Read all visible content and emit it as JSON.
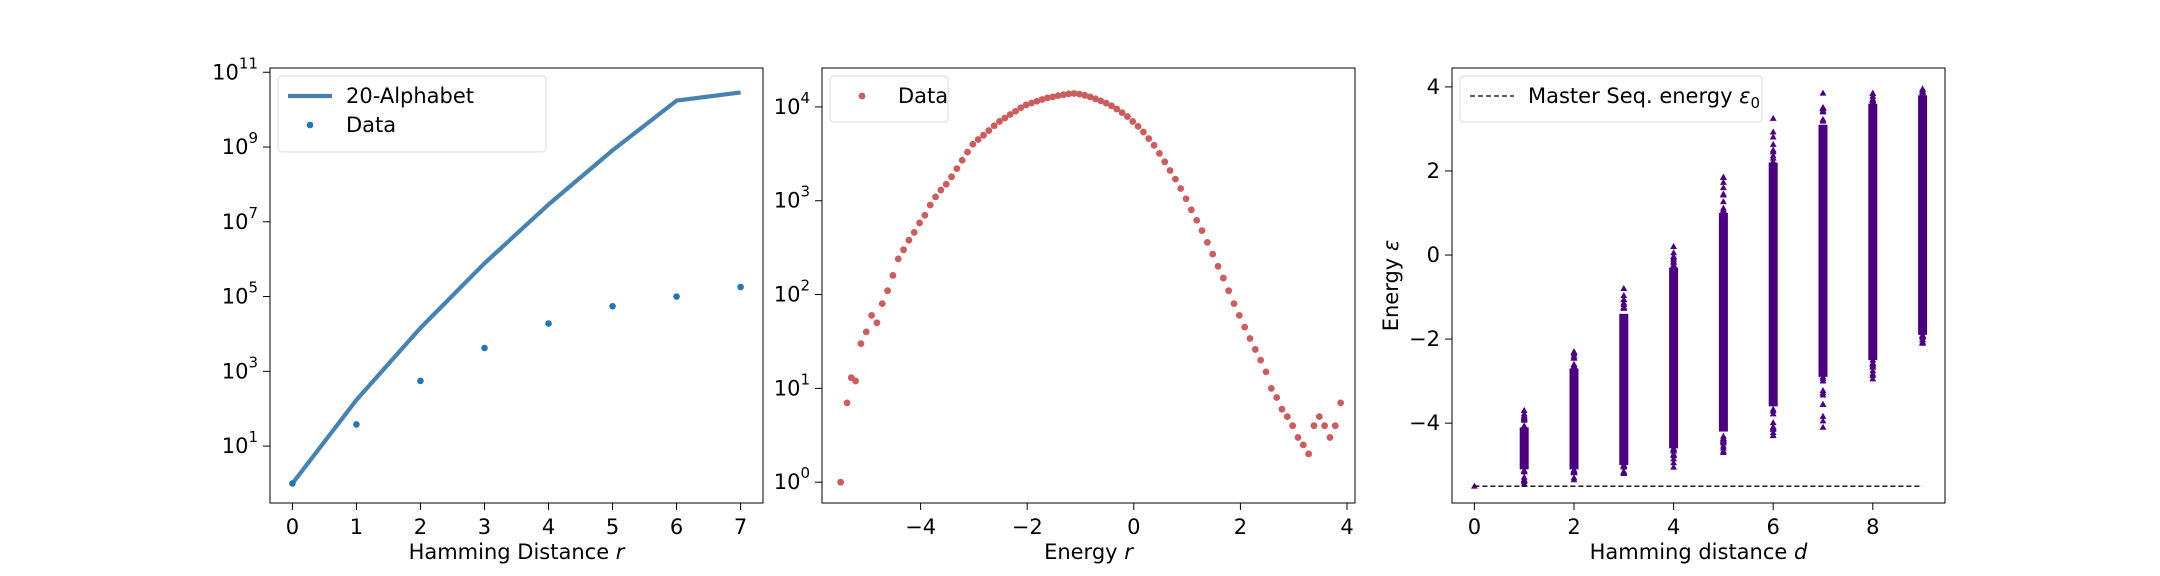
{
  "chart_data": [
    {
      "type": "line",
      "xlabel": "Hamming Distance",
      "xlabel_var": "r",
      "y_scale": "log",
      "xlim": [
        -0.35,
        7.35
      ],
      "ylim": [
        0.3,
        130000000000.0
      ],
      "xticks": [
        0,
        1,
        2,
        3,
        4,
        5,
        6,
        7
      ],
      "yticks": [
        {
          "value": 10,
          "base": "10",
          "exp": "1"
        },
        {
          "value": 1000,
          "base": "10",
          "exp": "3"
        },
        {
          "value": 100000,
          "base": "10",
          "exp": "5"
        },
        {
          "value": 10000000,
          "base": "10",
          "exp": "7"
        },
        {
          "value": 1000000000,
          "base": "10",
          "exp": "9"
        },
        {
          "value": 100000000000,
          "base": "10",
          "exp": "11"
        }
      ],
      "legend_position": "upper-left",
      "series": [
        {
          "name": "20-Alphabet",
          "kind": "line",
          "color": "#4682b4",
          "x": [
            0,
            1,
            2,
            3,
            4,
            5,
            6,
            7
          ],
          "values": [
            1,
            171,
            14535,
            775200,
            29070000,
            813960000,
            17500000000,
            29000000000.0
          ]
        },
        {
          "name": "Data",
          "kind": "scatter",
          "color": "#1f77b4",
          "x": [
            0,
            1,
            2,
            3,
            4,
            5,
            6,
            7
          ],
          "values": [
            1,
            38,
            555,
            4200,
            19000,
            55000,
            100000,
            180000
          ]
        }
      ]
    },
    {
      "type": "scatter",
      "xlabel": "Energy",
      "xlabel_var": "r",
      "y_scale": "log",
      "xlim": [
        -5.85,
        4.15
      ],
      "ylim": [
        0.6,
        26000.0
      ],
      "xticks": [
        {
          "value": -4,
          "label": "−4"
        },
        {
          "value": -2,
          "label": "−2"
        },
        {
          "value": 0,
          "label": "0"
        },
        {
          "value": 2,
          "label": "2"
        },
        {
          "value": 4,
          "label": "4"
        }
      ],
      "yticks": [
        {
          "value": 1,
          "base": "10",
          "exp": "0"
        },
        {
          "value": 10,
          "base": "10",
          "exp": "1"
        },
        {
          "value": 100,
          "base": "10",
          "exp": "2"
        },
        {
          "value": 1000,
          "base": "10",
          "exp": "3"
        },
        {
          "value": 10000,
          "base": "10",
          "exp": "4"
        }
      ],
      "legend_position": "upper-left",
      "series": [
        {
          "name": "Data",
          "color": "#cd5c5c",
          "x": [
            -5.5,
            -5.38,
            -5.3,
            -5.22,
            -5.12,
            -5.02,
            -4.92,
            -4.82,
            -4.72,
            -4.62,
            -4.52,
            -4.42,
            -4.32,
            -4.22,
            -4.12,
            -4.02,
            -3.92,
            -3.82,
            -3.72,
            -3.62,
            -3.52,
            -3.42,
            -3.32,
            -3.22,
            -3.12,
            -3.02,
            -2.92,
            -2.82,
            -2.72,
            -2.62,
            -2.52,
            -2.42,
            -2.32,
            -2.22,
            -2.12,
            -2.02,
            -1.92,
            -1.82,
            -1.72,
            -1.62,
            -1.52,
            -1.42,
            -1.32,
            -1.22,
            -1.12,
            -1.02,
            -0.92,
            -0.82,
            -0.72,
            -0.62,
            -0.52,
            -0.42,
            -0.32,
            -0.22,
            -0.12,
            -0.02,
            0.08,
            0.18,
            0.28,
            0.38,
            0.48,
            0.58,
            0.68,
            0.78,
            0.88,
            0.98,
            1.08,
            1.18,
            1.28,
            1.38,
            1.48,
            1.58,
            1.68,
            1.78,
            1.88,
            1.98,
            2.08,
            2.18,
            2.28,
            2.38,
            2.48,
            2.58,
            2.68,
            2.78,
            2.88,
            2.98,
            3.08,
            3.18,
            3.28,
            3.38,
            3.48,
            3.58,
            3.68,
            3.78,
            3.88
          ],
          "values": [
            1,
            7,
            13,
            12,
            30,
            40,
            60,
            50,
            80,
            110,
            160,
            240,
            300,
            380,
            460,
            580,
            700,
            900,
            1100,
            1300,
            1500,
            1800,
            2200,
            2700,
            3300,
            4000,
            4500,
            5000,
            5600,
            6300,
            7000,
            7600,
            8300,
            9000,
            9800,
            10500,
            11000,
            11500,
            12000,
            12500,
            12800,
            13200,
            13500,
            13800,
            13900,
            13700,
            13300,
            12800,
            12200,
            11600,
            11000,
            10300,
            9500,
            8700,
            7900,
            7000,
            6200,
            5400,
            4600,
            3900,
            3200,
            2600,
            2100,
            1700,
            1350,
            1050,
            800,
            620,
            480,
            360,
            270,
            200,
            150,
            110,
            80,
            60,
            45,
            34,
            26,
            20,
            15,
            10,
            8,
            6,
            5,
            4,
            3,
            2.5,
            2,
            4,
            5,
            4,
            3,
            4,
            7
          ]
        }
      ]
    },
    {
      "type": "scatter",
      "xlabel": "Hamming distance",
      "xlabel_var": "d",
      "ylabel": "Energy",
      "ylabel_var": "ε",
      "xlim": [
        -0.45,
        9.45
      ],
      "ylim": [
        -5.9,
        4.45
      ],
      "xticks": [
        0,
        2,
        4,
        6,
        8
      ],
      "yticks": [
        {
          "value": -4,
          "label": "−4"
        },
        {
          "value": -2,
          "label": "−2"
        },
        {
          "value": 0,
          "label": "0"
        },
        {
          "value": 2,
          "label": "2"
        },
        {
          "value": 4,
          "label": "4"
        }
      ],
      "legend_position": "upper-left",
      "master_line": {
        "name": "Master Seq. energy",
        "symbol": "ε",
        "subscript": "0",
        "y": -5.5,
        "x_range": [
          0,
          9
        ],
        "color": "#000000"
      },
      "series": [
        {
          "name": "",
          "color": "#4b0082",
          "marker": "triangle",
          "x": [
            0,
            1,
            2,
            3,
            4,
            5,
            6,
            7,
            8,
            9
          ],
          "y_min": [
            -5.5,
            -5.45,
            -5.35,
            -5.2,
            -5.05,
            -4.7,
            -4.3,
            -4.1,
            -2.95,
            -2.1
          ],
          "y_max": [
            -5.5,
            -3.7,
            -2.3,
            -0.8,
            0.2,
            1.85,
            3.25,
            3.85,
            3.85,
            3.95
          ],
          "y_dense_min": [
            -5.5,
            -5.1,
            -5.1,
            -5.0,
            -4.6,
            -4.2,
            -3.6,
            -2.9,
            -2.5,
            -1.9
          ],
          "y_dense_max": [
            -5.5,
            -4.1,
            -2.7,
            -1.4,
            -0.3,
            1.0,
            2.2,
            3.1,
            3.6,
            3.8
          ]
        }
      ]
    }
  ]
}
